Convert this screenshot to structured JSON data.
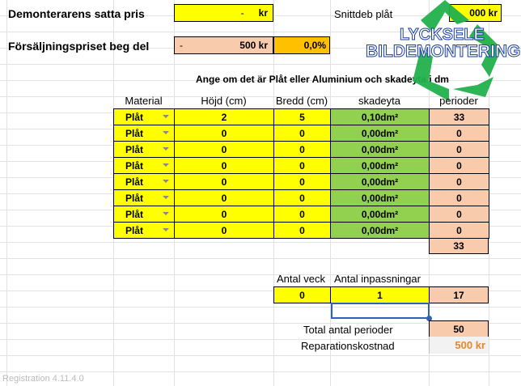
{
  "header": {
    "demont_label": "Demonterarens satta pris",
    "demont_dash": "-",
    "demont_value": "kr",
    "snitt_label": "Snittdeb plåt",
    "snitt_value": "000 kr",
    "forsalj_label": "Försäljningspriset beg del",
    "forsalj_dash": "-",
    "forsalj_value": "500 kr",
    "forsalj_pct": "0,0%"
  },
  "logo": {
    "line1": "LYCKSELE",
    "line2": "BILDEMONTERING",
    "color": "#22b14c"
  },
  "instruction": "Ange om det är Plåt eller Aluminium och skadeyta i dm",
  "table": {
    "headers": [
      "Material",
      "Höjd (cm)",
      "Bredd (cm)",
      "skadeyta",
      "perioder"
    ],
    "rows": [
      [
        "Plåt",
        "2",
        "5",
        "0,10dm²",
        "33"
      ],
      [
        "Plåt",
        "0",
        "0",
        "0,00dm²",
        "0"
      ],
      [
        "Plåt",
        "0",
        "0",
        "0,00dm²",
        "0"
      ],
      [
        "Plåt",
        "0",
        "0",
        "0,00dm²",
        "0"
      ],
      [
        "Plåt",
        "0",
        "0",
        "0,00dm²",
        "0"
      ],
      [
        "Plåt",
        "0",
        "0",
        "0,00dm²",
        "0"
      ],
      [
        "Plåt",
        "0",
        "0",
        "0,00dm²",
        "0"
      ],
      [
        "Plåt",
        "0",
        "0",
        "0,00dm²",
        "0"
      ]
    ],
    "sum": "33"
  },
  "extra": {
    "veck_label": "Antal veck",
    "inpass_label": "Antal inpassningar",
    "veck_value": "0",
    "inpass_value": "1",
    "periods": "17",
    "total_label": "Total antal perioder",
    "total_value": "50",
    "rep_label": "Reparationskostnad",
    "rep_value": "500 kr"
  },
  "footer": "Registration 4.11.4.0"
}
